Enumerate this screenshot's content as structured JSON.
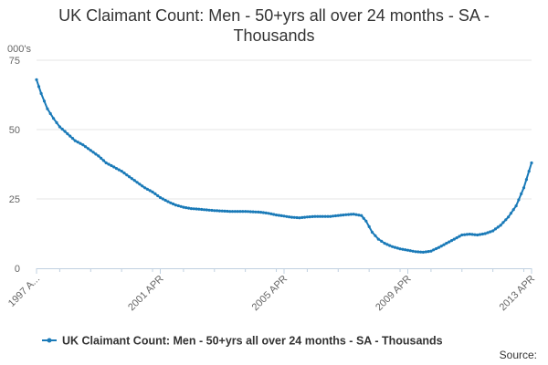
{
  "chart_data": {
    "type": "line",
    "title": "UK Claimant Count: Men - 50+yrs all over 24 months - SA - Thousands",
    "ylabel": "000's",
    "xlabel": "",
    "ylim": [
      0,
      75
    ],
    "yticks": [
      0,
      25,
      50,
      75
    ],
    "x_range": [
      1997.25,
      2013.25
    ],
    "x_tick_labels": [
      {
        "x": 1997.25,
        "label": "1997 A..."
      },
      {
        "x": 2001.25,
        "label": "2001 APR"
      },
      {
        "x": 2005.25,
        "label": "2005 APR"
      },
      {
        "x": 2009.25,
        "label": "2009 APR"
      },
      {
        "x": 2013.25,
        "label": "2013 APR"
      }
    ],
    "grid": true,
    "legend_position": "bottom",
    "series": [
      {
        "name": "UK Claimant Count: Men - 50+yrs all over 24 months - SA - Thousands",
        "color": "#1a7ab8",
        "points": [
          [
            1997.25,
            68
          ],
          [
            1997.4,
            63
          ],
          [
            1997.6,
            57.5
          ],
          [
            1997.8,
            54
          ],
          [
            1998.0,
            51
          ],
          [
            1998.25,
            48.5
          ],
          [
            1998.5,
            46
          ],
          [
            1998.75,
            44.5
          ],
          [
            1999.0,
            42.5
          ],
          [
            1999.25,
            40.5
          ],
          [
            1999.5,
            38
          ],
          [
            1999.75,
            36.5
          ],
          [
            2000.0,
            35
          ],
          [
            2000.25,
            33
          ],
          [
            2000.5,
            31
          ],
          [
            2000.75,
            29
          ],
          [
            2001.0,
            27.5
          ],
          [
            2001.25,
            25.5
          ],
          [
            2001.5,
            24
          ],
          [
            2001.75,
            22.8
          ],
          [
            2002.0,
            22
          ],
          [
            2002.25,
            21.5
          ],
          [
            2002.5,
            21.3
          ],
          [
            2003.0,
            20.8
          ],
          [
            2003.5,
            20.5
          ],
          [
            2004.0,
            20.5
          ],
          [
            2004.5,
            20.2
          ],
          [
            2004.75,
            19.8
          ],
          [
            2005.0,
            19.2
          ],
          [
            2005.25,
            18.8
          ],
          [
            2005.5,
            18.4
          ],
          [
            2005.75,
            18.2
          ],
          [
            2006.0,
            18.5
          ],
          [
            2006.25,
            18.7
          ],
          [
            2006.5,
            18.7
          ],
          [
            2006.75,
            18.7
          ],
          [
            2007.0,
            19
          ],
          [
            2007.25,
            19.3
          ],
          [
            2007.5,
            19.5
          ],
          [
            2007.75,
            19
          ],
          [
            2007.9,
            17
          ],
          [
            2008.1,
            13
          ],
          [
            2008.3,
            10.5
          ],
          [
            2008.5,
            9
          ],
          [
            2008.75,
            7.8
          ],
          [
            2009.0,
            7
          ],
          [
            2009.25,
            6.5
          ],
          [
            2009.5,
            6
          ],
          [
            2009.75,
            5.8
          ],
          [
            2010.0,
            6.2
          ],
          [
            2010.25,
            7.5
          ],
          [
            2010.5,
            9
          ],
          [
            2010.75,
            10.5
          ],
          [
            2011.0,
            12
          ],
          [
            2011.25,
            12.3
          ],
          [
            2011.5,
            12
          ],
          [
            2011.75,
            12.5
          ],
          [
            2012.0,
            13.5
          ],
          [
            2012.25,
            15.5
          ],
          [
            2012.5,
            18.5
          ],
          [
            2012.75,
            22.5
          ],
          [
            2013.0,
            29
          ],
          [
            2013.25,
            38
          ]
        ]
      }
    ],
    "source_label": "Source:"
  }
}
